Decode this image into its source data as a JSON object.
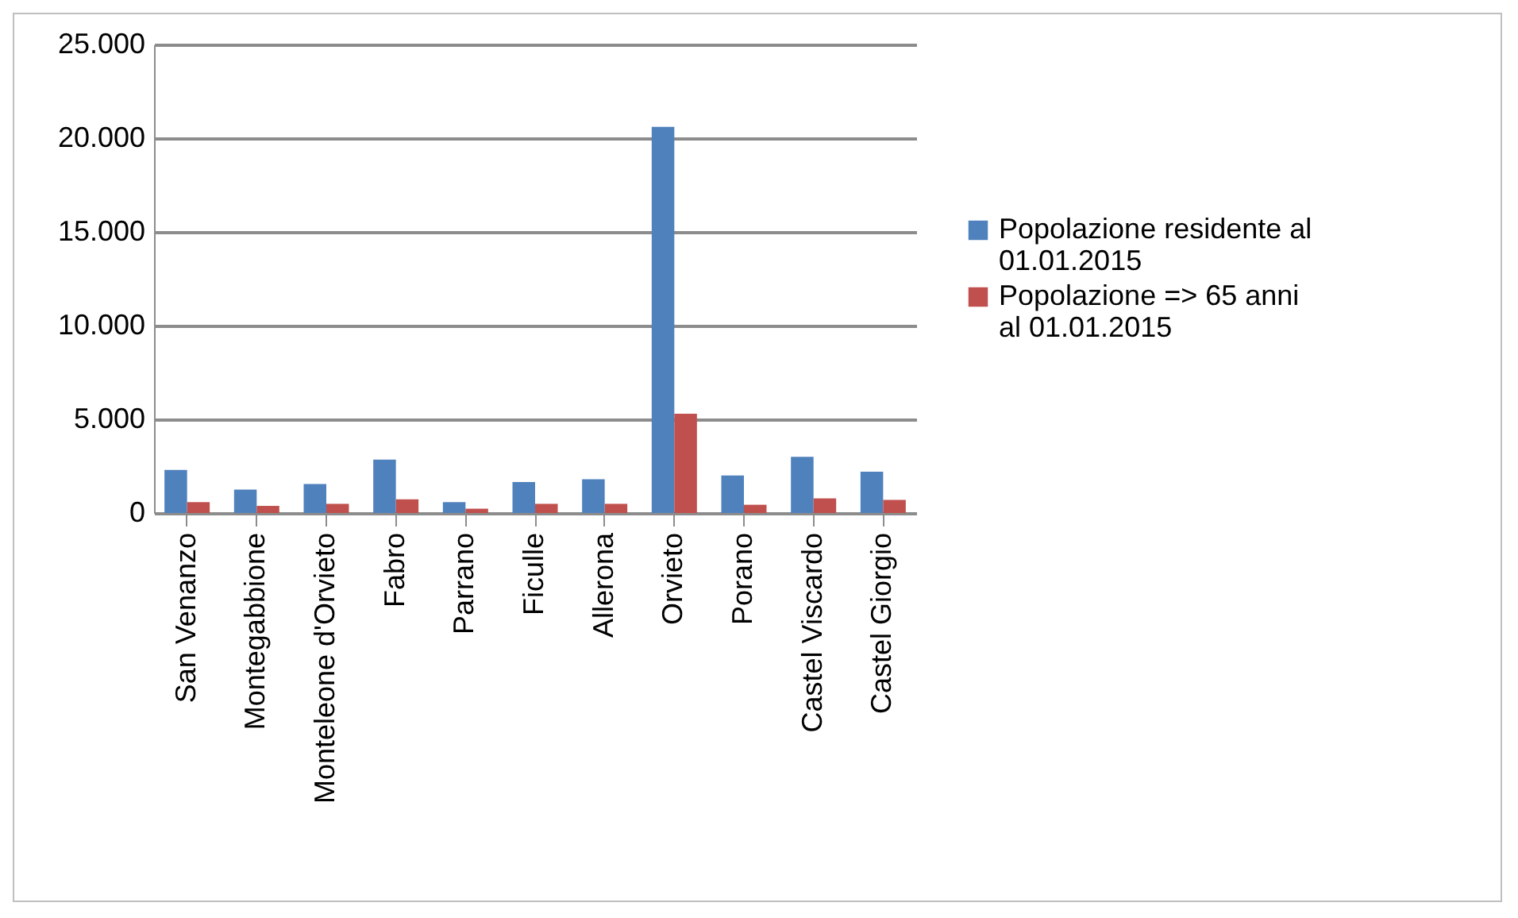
{
  "chart_data": {
    "type": "bar",
    "categories": [
      "San Venanzo",
      "Montegabbione",
      "Monteleone d'Orvieto",
      "Fabro",
      "Parrano",
      "Ficulle",
      "Allerona",
      "Orvieto",
      "Porano",
      "Castel Viscardo",
      "Castel Giorgio"
    ],
    "series": [
      {
        "name": "Popolazione residente al 01.01.2015",
        "color": "#4f81bd",
        "values": [
          2300,
          1250,
          1550,
          2850,
          580,
          1650,
          1800,
          20600,
          2000,
          3000,
          2200
        ]
      },
      {
        "name": "Popolazione  => 65 anni  al 01.01.2015",
        "color": "#c0504d",
        "values": [
          580,
          380,
          490,
          730,
          230,
          490,
          490,
          5300,
          440,
          780,
          700
        ]
      }
    ],
    "ylim": [
      0,
      25000
    ],
    "yticks": [
      {
        "value": 0,
        "label": "0"
      },
      {
        "value": 5000,
        "label": "5.000"
      },
      {
        "value": 10000,
        "label": "10.000"
      },
      {
        "value": 15000,
        "label": "15.000"
      },
      {
        "value": 20000,
        "label": "20.000"
      },
      {
        "value": 25000,
        "label": "25.000"
      }
    ],
    "grid": "y",
    "legend": "right"
  }
}
